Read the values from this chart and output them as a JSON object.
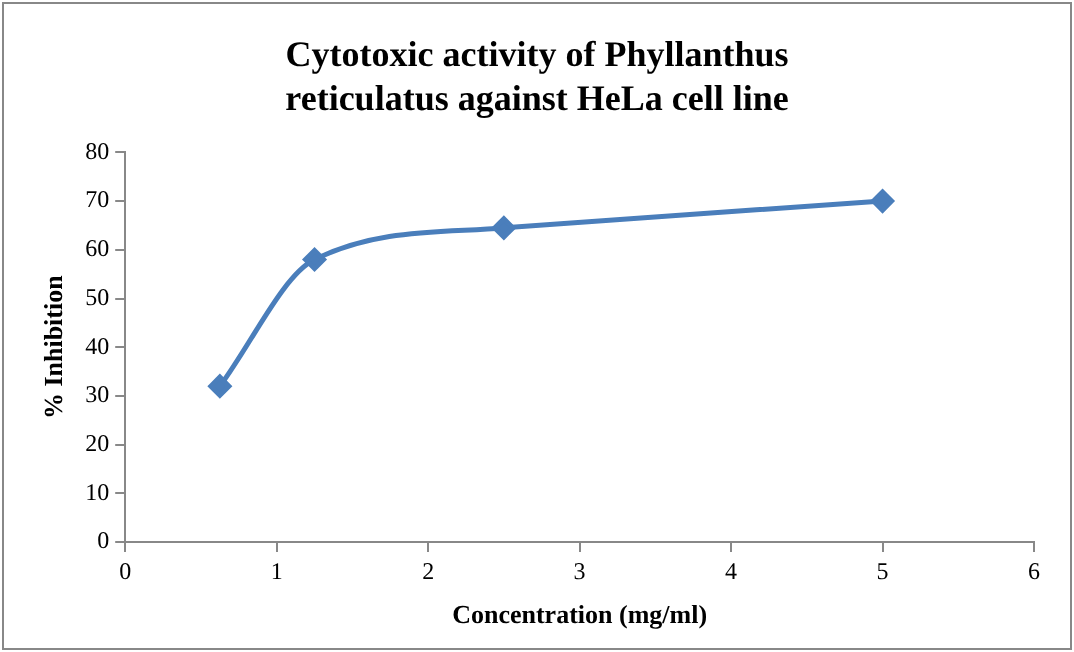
{
  "chart_data": {
    "type": "line",
    "title": "Cytotoxic activity of Phyllanthus reticulatus against HeLa cell line",
    "xlabel": "Concentration (mg/ml)",
    "ylabel": "% Inhibition",
    "x": [
      0.625,
      1.25,
      2.5,
      5
    ],
    "series": [
      {
        "color": "#4a7ebb",
        "values": [
          32,
          58,
          64.5,
          70
        ]
      }
    ],
    "xlim": [
      0,
      6
    ],
    "xticks": [
      0,
      1,
      2,
      3,
      4,
      5,
      6
    ],
    "ylim": [
      0,
      80
    ],
    "yticks": [
      0,
      10,
      20,
      30,
      40,
      50,
      60,
      70,
      80
    ],
    "grid": false,
    "legend": false,
    "marker": "diamond",
    "line_style": "solid"
  }
}
